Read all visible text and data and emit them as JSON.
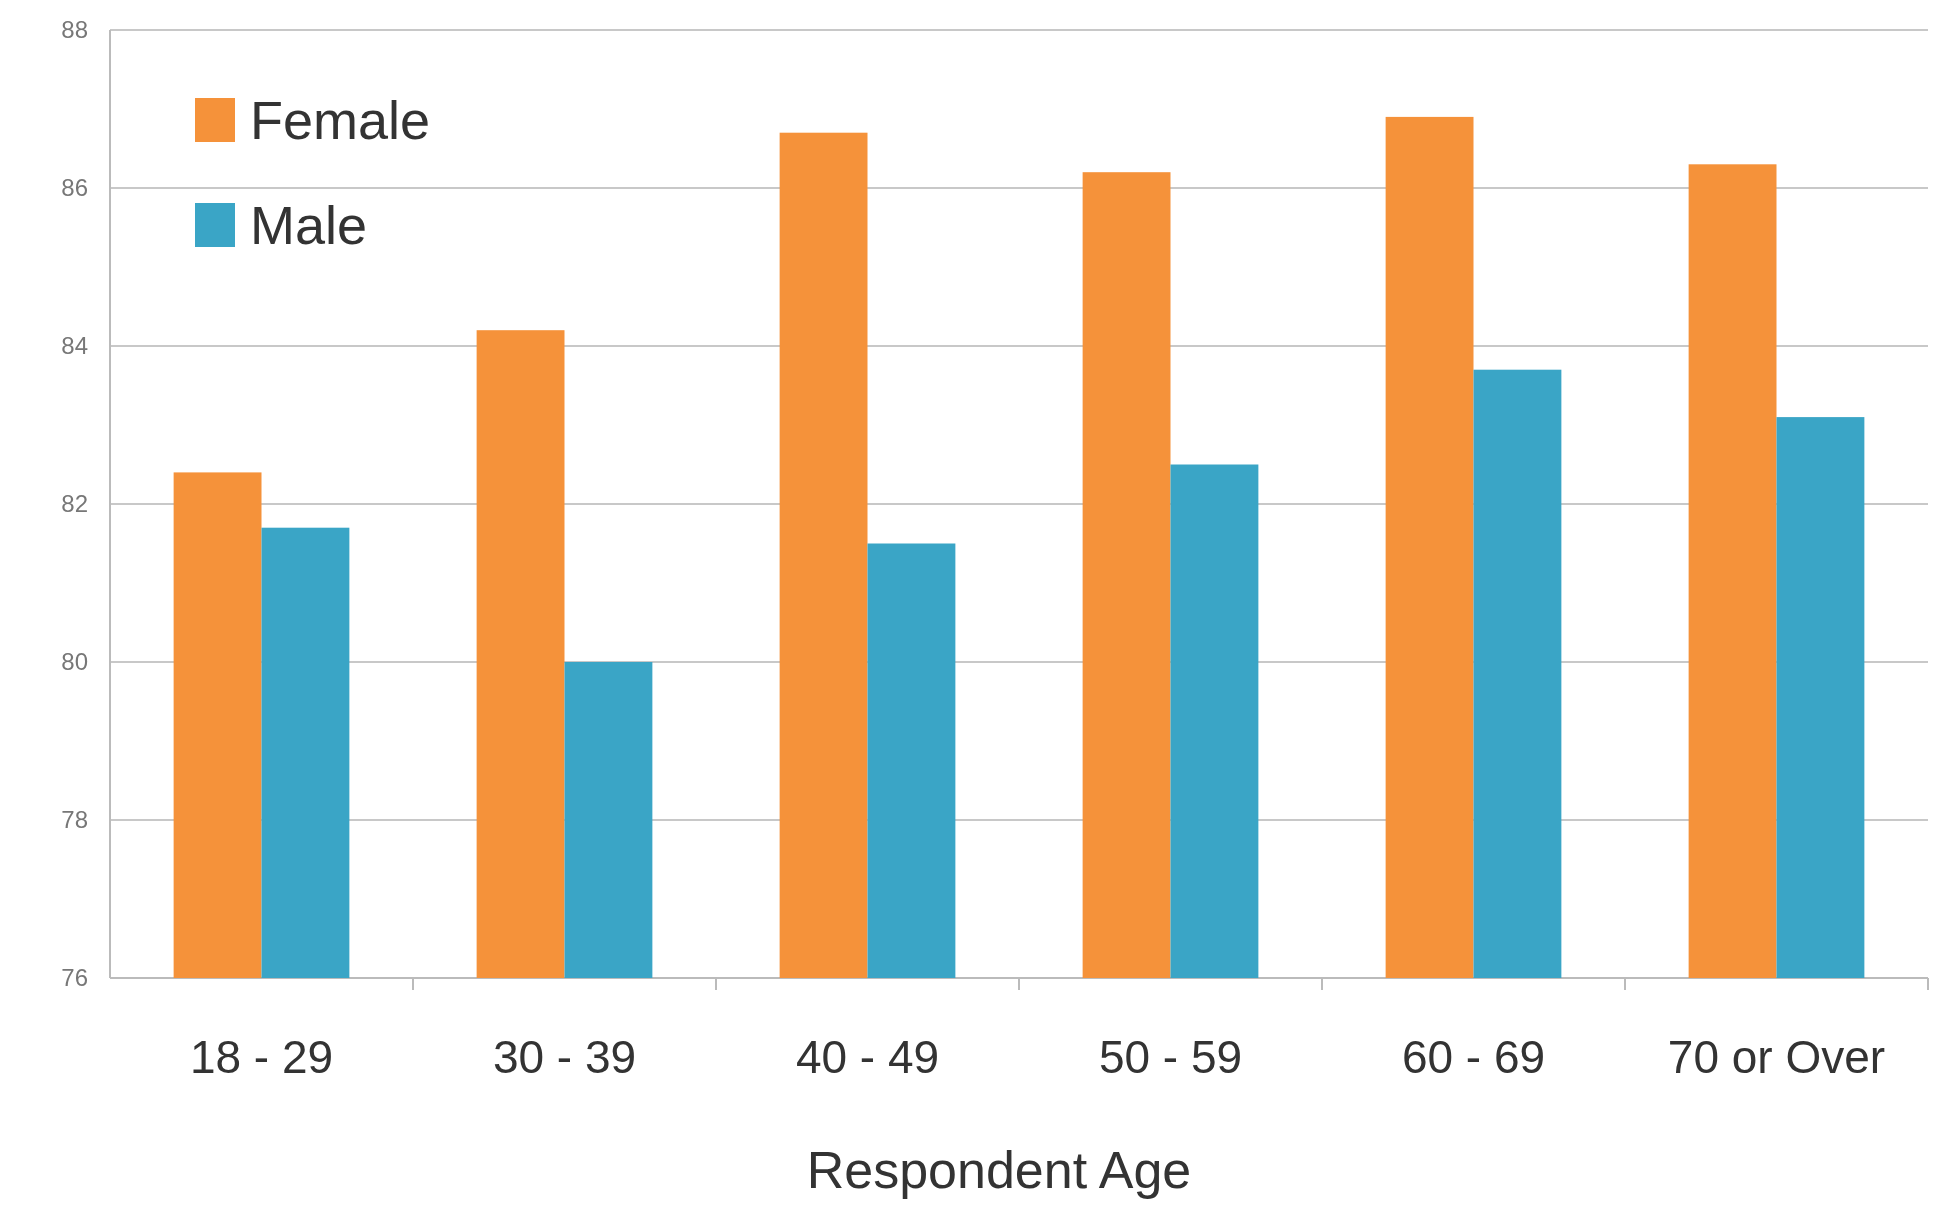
{
  "chart_data": {
    "type": "bar",
    "xlabel": "Respondent Age",
    "categories": [
      "18 - 29",
      "30 - 39",
      "40 - 49",
      "50 - 59",
      "60 - 69",
      "70 or Over"
    ],
    "series": [
      {
        "name": "Female",
        "color": "#f5923a",
        "values": [
          82.4,
          84.2,
          86.7,
          86.2,
          86.9,
          86.3
        ]
      },
      {
        "name": "Male",
        "color": "#3aa5c6",
        "values": [
          81.7,
          80.0,
          81.5,
          82.5,
          83.7,
          83.1
        ]
      }
    ],
    "ylim": [
      76,
      88
    ],
    "yticks": [
      76,
      78,
      80,
      82,
      84,
      86,
      88
    ],
    "grid": "y",
    "legend": "top left"
  }
}
